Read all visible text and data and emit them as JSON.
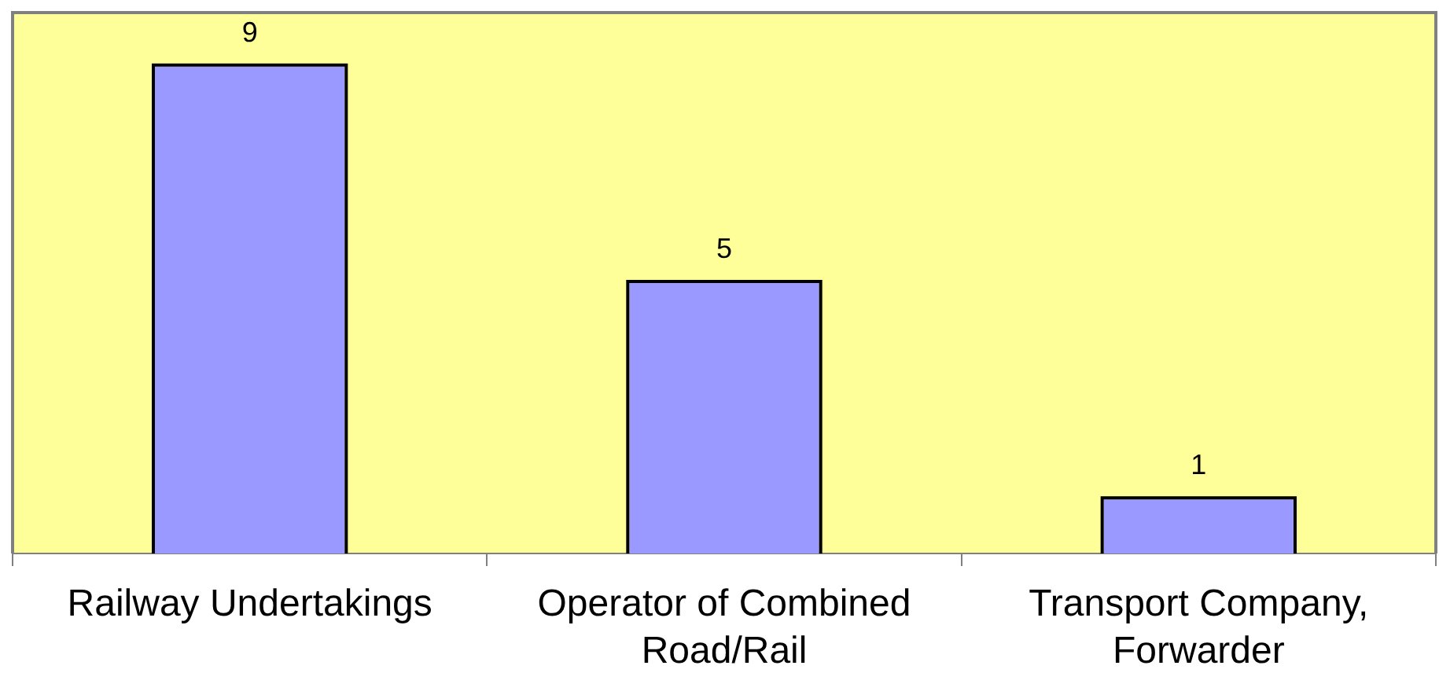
{
  "chart_data": {
    "type": "bar",
    "categories": [
      "Railway Undertakings",
      "Operator of Combined Road/Rail",
      "Transport Company, Forwarder"
    ],
    "values": [
      9,
      5,
      1
    ],
    "color": "#9999ff",
    "ylim": [
      0,
      10
    ],
    "tick_labels": "x",
    "data_labels": true
  }
}
